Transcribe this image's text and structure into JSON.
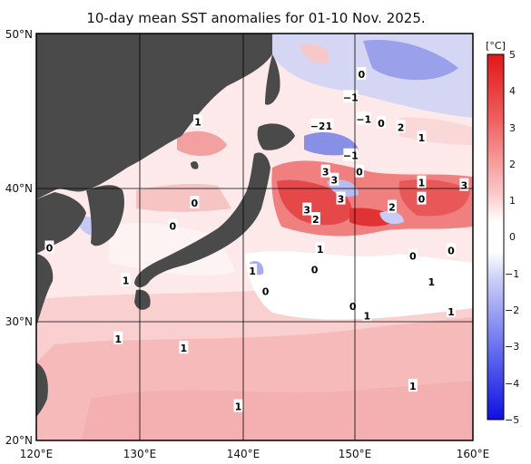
{
  "title": "10-day mean SST anomalies for 01-10 Nov. 2025.",
  "x_axis": {
    "labels": [
      "120°E",
      "130°E",
      "140°E",
      "150°E",
      "160°E"
    ],
    "lon_min": 120,
    "lon_max": 160
  },
  "y_axis": {
    "labels": [
      "20°N",
      "30°N",
      "40°N",
      "50°N"
    ],
    "lat_min": 20,
    "lat_max": 50
  },
  "colorbar": {
    "unit": "[°C]",
    "ticks": [
      "5",
      "4",
      "3",
      "2",
      "1",
      "0",
      "−1",
      "−2",
      "−3",
      "−4",
      "−5"
    ],
    "range": [
      -5,
      5
    ],
    "colors": {
      "warm_max": "#e02020",
      "neutral": "#ffffff",
      "cool_max": "#1010e0"
    }
  },
  "colors": {
    "land": "#4a4a4a",
    "grid": "#000000"
  },
  "contour_labels": [
    {
      "text": "0",
      "lon": 121.2,
      "lat": 34.2
    },
    {
      "text": "1",
      "lon": 128.2,
      "lat": 31.8
    },
    {
      "text": "1",
      "lon": 127.5,
      "lat": 27.5
    },
    {
      "text": "1",
      "lon": 133.5,
      "lat": 26.8
    },
    {
      "text": "1",
      "lon": 138.5,
      "lat": 22.5
    },
    {
      "text": "0",
      "lon": 134.5,
      "lat": 37.5
    },
    {
      "text": "0",
      "lon": 132.5,
      "lat": 35.8
    },
    {
      "text": "1",
      "lon": 134.8,
      "lat": 43.5
    },
    {
      "text": "1",
      "lon": 139.8,
      "lat": 32.5
    },
    {
      "text": "0",
      "lon": 141.0,
      "lat": 31.0
    },
    {
      "text": "0",
      "lon": 149.8,
      "lat": 47.0
    },
    {
      "text": "−1",
      "lon": 148.8,
      "lat": 45.3
    },
    {
      "text": "−1",
      "lon": 150.0,
      "lat": 43.7
    },
    {
      "text": "−2",
      "lon": 145.8,
      "lat": 43.2
    },
    {
      "text": "1",
      "lon": 146.8,
      "lat": 43.2
    },
    {
      "text": "0",
      "lon": 151.6,
      "lat": 43.4
    },
    {
      "text": "2",
      "lon": 153.4,
      "lat": 43.1
    },
    {
      "text": "1",
      "lon": 155.3,
      "lat": 42.3
    },
    {
      "text": "−1",
      "lon": 148.8,
      "lat": 41.0
    },
    {
      "text": "3",
      "lon": 146.5,
      "lat": 39.8
    },
    {
      "text": "3",
      "lon": 147.3,
      "lat": 39.2
    },
    {
      "text": "0",
      "lon": 149.6,
      "lat": 39.8
    },
    {
      "text": "3",
      "lon": 144.8,
      "lat": 37.0
    },
    {
      "text": "2",
      "lon": 145.6,
      "lat": 36.3
    },
    {
      "text": "3",
      "lon": 147.9,
      "lat": 37.8
    },
    {
      "text": "2",
      "lon": 152.6,
      "lat": 37.2
    },
    {
      "text": "1",
      "lon": 155.3,
      "lat": 39.0
    },
    {
      "text": "0",
      "lon": 155.3,
      "lat": 37.8
    },
    {
      "text": "3",
      "lon": 159.2,
      "lat": 38.8
    },
    {
      "text": "1",
      "lon": 146.0,
      "lat": 34.1
    },
    {
      "text": "0",
      "lon": 145.5,
      "lat": 32.6
    },
    {
      "text": "0",
      "lon": 154.5,
      "lat": 33.6
    },
    {
      "text": "0",
      "lon": 158.0,
      "lat": 34.0
    },
    {
      "text": "1",
      "lon": 156.2,
      "lat": 31.7
    },
    {
      "text": "0",
      "lon": 149.0,
      "lat": 29.9
    },
    {
      "text": "1",
      "lon": 150.3,
      "lat": 29.2
    },
    {
      "text": "1",
      "lon": 158.0,
      "lat": 29.5
    },
    {
      "text": "1",
      "lon": 154.5,
      "lat": 24.0
    }
  ]
}
